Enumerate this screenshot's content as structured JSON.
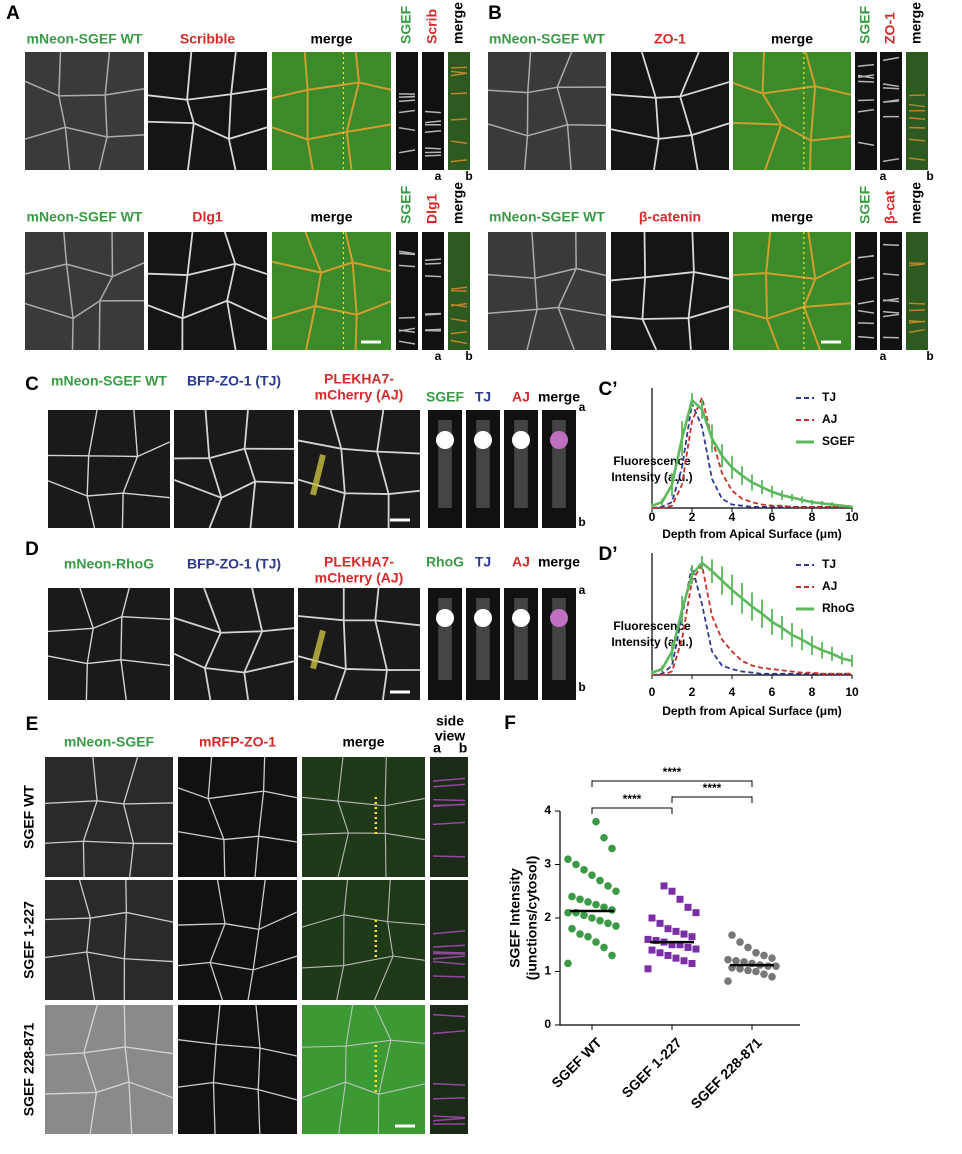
{
  "figure": {
    "panel_A": {
      "letter": "A",
      "rows": [
        {
          "channels": [
            "mNeon-SGEF WT",
            "Scribble",
            "merge"
          ],
          "side": [
            "SGEF",
            "Scrib",
            "merge"
          ],
          "ends": [
            "a",
            "b"
          ]
        },
        {
          "channels": [
            "mNeon-SGEF WT",
            "Dlg1",
            "merge"
          ],
          "side": [
            "SGEF",
            "Dlg1",
            "merge"
          ],
          "ends": [
            "a",
            "b"
          ]
        }
      ]
    },
    "panel_B": {
      "letter": "B",
      "rows": [
        {
          "channels": [
            "mNeon-SGEF WT",
            "ZO-1",
            "merge"
          ],
          "side": [
            "SGEF",
            "ZO-1",
            "merge"
          ],
          "ends": [
            "a",
            "b"
          ]
        },
        {
          "channels": [
            "mNeon-SGEF WT",
            "β-catenin",
            "merge"
          ],
          "side": [
            "SGEF",
            "β-cat",
            "merge"
          ],
          "ends": [
            "a",
            "b"
          ]
        }
      ]
    },
    "panel_C": {
      "letter": "C",
      "channels": [
        "mNeon-SGEF WT",
        "BFP-ZO-1 (TJ)",
        [
          "PLEKHA7-",
          "mCherry (AJ)"
        ]
      ],
      "tiles": [
        "SGEF",
        "TJ",
        "AJ",
        "merge"
      ],
      "ends": [
        "a",
        "b"
      ]
    },
    "panel_D": {
      "letter": "D",
      "channels": [
        "mNeon-RhoG",
        "BFP-ZO-1 (TJ)",
        [
          "PLEKHA7-",
          "mCherry (AJ)"
        ]
      ],
      "tiles": [
        "RhoG",
        "TJ",
        "AJ",
        "merge"
      ],
      "ends": [
        "a",
        "b"
      ]
    },
    "panel_E": {
      "letter": "E",
      "channels": [
        "mNeon-SGEF",
        "mRFP-ZO-1",
        "merge"
      ],
      "side_title": [
        "side",
        "view"
      ],
      "ends": [
        "a",
        "b"
      ],
      "rows": [
        "SGEF WT",
        "SGEF 1-227",
        "SGEF 228-871"
      ]
    }
  },
  "chart_data": [
    {
      "type": "line",
      "label": "C’",
      "ylabel": [
        "Fluorescence",
        "Intensity (a.u.)"
      ],
      "xlabel": "Depth from Apical Surface (μm)",
      "x": [
        0,
        0.5,
        1,
        1.5,
        2,
        2.5,
        3,
        3.5,
        4,
        4.5,
        5,
        5.5,
        6,
        6.5,
        7,
        7.5,
        8,
        8.5,
        9,
        9.5,
        10
      ],
      "xlim": [
        0,
        10
      ],
      "xticks": [
        0,
        2,
        4,
        6,
        8,
        10
      ],
      "ylim": [
        0,
        1
      ],
      "series": [
        {
          "name": "TJ",
          "color": "#2e3a8c",
          "dashed": true,
          "values": [
            0,
            0.01,
            0.05,
            0.35,
            0.9,
            0.7,
            0.25,
            0.08,
            0.03,
            0.02,
            0.01,
            0.01,
            0.01,
            0.01,
            0.01,
            0.01,
            0.01,
            0.01,
            0.01,
            0.01,
            0.01
          ]
        },
        {
          "name": "AJ",
          "color": "#c8302c",
          "dashed": true,
          "values": [
            0,
            0,
            0.02,
            0.2,
            0.75,
            0.95,
            0.6,
            0.3,
            0.15,
            0.08,
            0.05,
            0.03,
            0.02,
            0.02,
            0.01,
            0.01,
            0.01,
            0.01,
            0.01,
            0.01,
            0.01
          ]
        },
        {
          "name": "SGEF",
          "color": "#5cb85c",
          "dashed": false,
          "values": [
            0.02,
            0.05,
            0.2,
            0.6,
            0.93,
            0.85,
            0.6,
            0.45,
            0.35,
            0.28,
            0.22,
            0.18,
            0.14,
            0.11,
            0.09,
            0.07,
            0.05,
            0.04,
            0.03,
            0.02,
            0.01
          ],
          "errors": [
            0.02,
            0.03,
            0.1,
            0.15,
            0.06,
            0.08,
            0.12,
            0.1,
            0.1,
            0.08,
            0.07,
            0.06,
            0.05,
            0.04,
            0.03,
            0.03,
            0.02,
            0.02,
            0.02,
            0.01,
            0.01
          ]
        }
      ]
    },
    {
      "type": "line",
      "label": "D’",
      "ylabel": [
        "Fluorescence",
        "Intensity (a.u.)"
      ],
      "xlabel": "Depth from Apical Surface (μm)",
      "x": [
        0,
        0.5,
        1,
        1.5,
        2,
        2.5,
        3,
        3.5,
        4,
        4.5,
        5,
        5.5,
        6,
        6.5,
        7,
        7.5,
        8,
        8.5,
        9,
        9.5,
        10
      ],
      "xlim": [
        0,
        10
      ],
      "xticks": [
        0,
        2,
        4,
        6,
        8,
        10
      ],
      "ylim": [
        0,
        1
      ],
      "series": [
        {
          "name": "TJ",
          "color": "#2e3a8c",
          "dashed": true,
          "values": [
            0,
            0.01,
            0.08,
            0.5,
            0.92,
            0.6,
            0.2,
            0.08,
            0.05,
            0.03,
            0.02,
            0.01,
            0.01,
            0.01,
            0.01,
            0.01,
            0.01,
            0.01,
            0.01,
            0.01,
            0.01
          ]
        },
        {
          "name": "AJ",
          "color": "#c8302c",
          "dashed": true,
          "values": [
            0,
            0,
            0.03,
            0.3,
            0.8,
            0.93,
            0.5,
            0.3,
            0.2,
            0.12,
            0.08,
            0.06,
            0.05,
            0.04,
            0.03,
            0.02,
            0.02,
            0.01,
            0.01,
            0.01,
            0.01
          ]
        },
        {
          "name": "RhoG",
          "color": "#5cb85c",
          "dashed": false,
          "values": [
            0.02,
            0.05,
            0.2,
            0.55,
            0.85,
            0.95,
            0.88,
            0.8,
            0.72,
            0.65,
            0.58,
            0.52,
            0.45,
            0.4,
            0.34,
            0.3,
            0.25,
            0.21,
            0.18,
            0.14,
            0.12
          ],
          "errors": [
            0.02,
            0.03,
            0.08,
            0.12,
            0.08,
            0.06,
            0.1,
            0.12,
            0.13,
            0.13,
            0.12,
            0.12,
            0.11,
            0.1,
            0.1,
            0.09,
            0.08,
            0.07,
            0.06,
            0.05,
            0.05
          ]
        }
      ]
    },
    {
      "type": "dot",
      "label": "F",
      "ylabel": [
        "SGEF Intensity",
        "(junctions/cytosol)"
      ],
      "categories": [
        "SGEF WT",
        "SGEF 1-227",
        "SGEF 228-871"
      ],
      "colors": [
        "#3a9a45",
        "#7b2fa6",
        "#777777"
      ],
      "ylim": [
        0,
        4
      ],
      "yticks": [
        0,
        1,
        2,
        3,
        4
      ],
      "points": [
        [
          1.15,
          1.3,
          1.45,
          1.55,
          1.65,
          1.7,
          1.8,
          1.85,
          1.9,
          1.95,
          2.0,
          2.05,
          2.1,
          2.1,
          2.15,
          2.2,
          2.25,
          2.3,
          2.35,
          2.4,
          2.5,
          2.6,
          2.7,
          2.8,
          2.9,
          3.0,
          3.1,
          3.3,
          3.5,
          3.8
        ],
        [
          1.05,
          1.15,
          1.2,
          1.25,
          1.3,
          1.35,
          1.4,
          1.42,
          1.45,
          1.5,
          1.5,
          1.55,
          1.58,
          1.6,
          1.65,
          1.7,
          1.75,
          1.8,
          1.9,
          2.0,
          2.1,
          2.2,
          2.35,
          2.5,
          2.6
        ],
        [
          0.82,
          0.9,
          0.95,
          1.0,
          1.02,
          1.05,
          1.07,
          1.1,
          1.1,
          1.12,
          1.15,
          1.18,
          1.2,
          1.22,
          1.25,
          1.3,
          1.35,
          1.45,
          1.55,
          1.68
        ]
      ],
      "means": [
        2.13,
        1.55,
        1.12
      ],
      "comparisons": [
        {
          "from": "SGEF WT",
          "to": "SGEF 1-227",
          "label": "****"
        },
        {
          "from": "SGEF 1-227",
          "to": "SGEF 228-871",
          "label": "****"
        },
        {
          "from": "SGEF WT",
          "to": "SGEF 228-871",
          "label": "****"
        }
      ]
    }
  ]
}
